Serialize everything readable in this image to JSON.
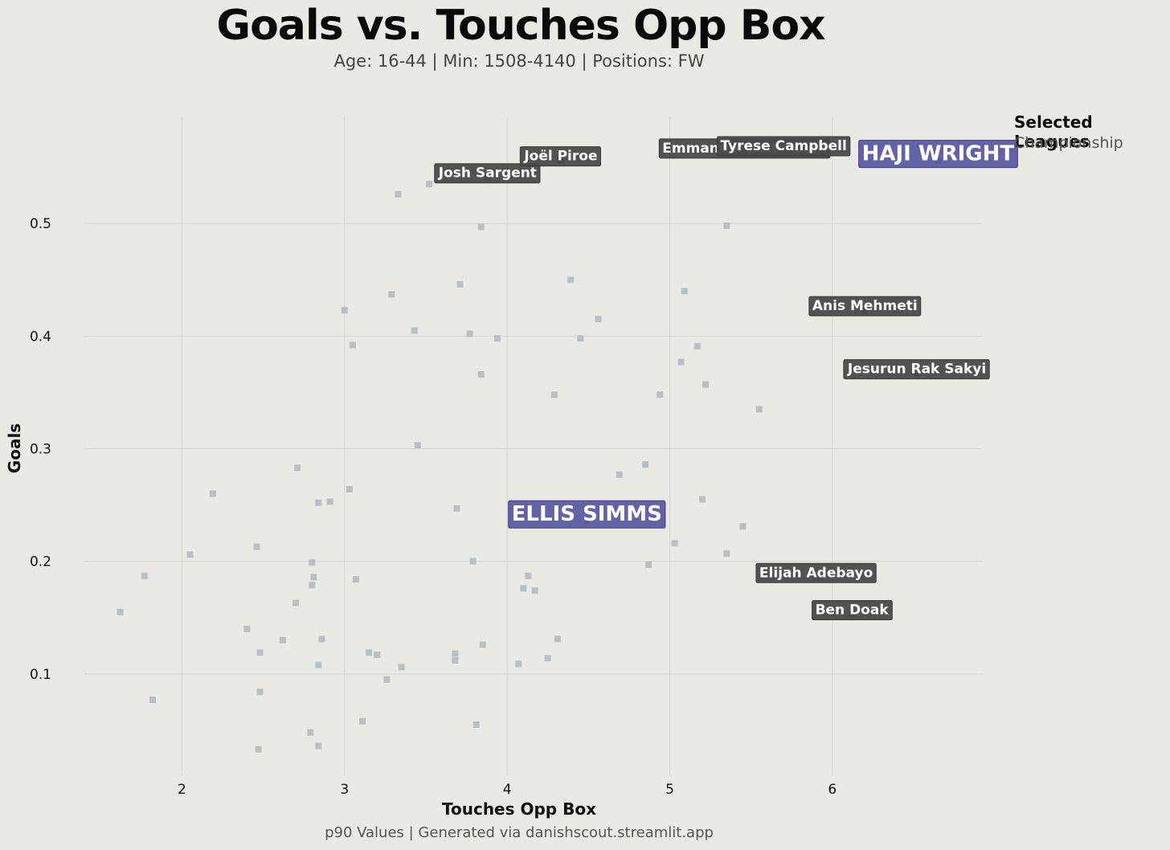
{
  "header": {
    "title": "Goals vs. Touches Opp Box",
    "subtitle": "Age: 16-44 | Min: 1508-4140 | Positions: FW"
  },
  "legend": {
    "title": "Selected Leagues",
    "items": [
      "Championship"
    ]
  },
  "footer": {
    "text": "p90 Values | Generated via danishscout.streamlit.app"
  },
  "colors": {
    "background": "#eaeae4",
    "point": "#b6c1c7",
    "highlight": "#5b5ba3",
    "label_box": "#4a4a4a",
    "grid": "#d4d4cf"
  },
  "chart_data": {
    "type": "scatter",
    "title": "Goals vs. Touches Opp Box",
    "xlabel": "Touches Opp Box",
    "ylabel": "Goals",
    "xlim": [
      1.4,
      6.92
    ],
    "ylim": [
      0.01,
      0.595
    ],
    "xticks": [
      2,
      3,
      4,
      5,
      6
    ],
    "yticks": [
      0.1,
      0.2,
      0.3,
      0.4,
      0.5
    ],
    "grid": true,
    "legend_position": "right",
    "points": [
      {
        "x": 1.62,
        "y": 0.155
      },
      {
        "x": 1.77,
        "y": 0.187
      },
      {
        "x": 1.82,
        "y": 0.077
      },
      {
        "x": 2.05,
        "y": 0.206
      },
      {
        "x": 2.19,
        "y": 0.26
      },
      {
        "x": 2.4,
        "y": 0.14
      },
      {
        "x": 2.46,
        "y": 0.213
      },
      {
        "x": 2.47,
        "y": 0.033
      },
      {
        "x": 2.48,
        "y": 0.119
      },
      {
        "x": 2.48,
        "y": 0.084
      },
      {
        "x": 2.62,
        "y": 0.13
      },
      {
        "x": 2.7,
        "y": 0.163
      },
      {
        "x": 2.71,
        "y": 0.283
      },
      {
        "x": 2.79,
        "y": 0.048
      },
      {
        "x": 2.8,
        "y": 0.199
      },
      {
        "x": 2.8,
        "y": 0.179
      },
      {
        "x": 2.81,
        "y": 0.186
      },
      {
        "x": 2.84,
        "y": 0.252
      },
      {
        "x": 2.84,
        "y": 0.108
      },
      {
        "x": 2.84,
        "y": 0.036
      },
      {
        "x": 2.86,
        "y": 0.131
      },
      {
        "x": 2.91,
        "y": 0.253
      },
      {
        "x": 3.0,
        "y": 0.423
      },
      {
        "x": 3.03,
        "y": 0.264
      },
      {
        "x": 3.05,
        "y": 0.392
      },
      {
        "x": 3.07,
        "y": 0.184
      },
      {
        "x": 3.11,
        "y": 0.058
      },
      {
        "x": 3.15,
        "y": 0.119
      },
      {
        "x": 3.2,
        "y": 0.117
      },
      {
        "x": 3.26,
        "y": 0.095
      },
      {
        "x": 3.29,
        "y": 0.437
      },
      {
        "x": 3.33,
        "y": 0.526
      },
      {
        "x": 3.35,
        "y": 0.106
      },
      {
        "x": 3.43,
        "y": 0.405
      },
      {
        "x": 3.45,
        "y": 0.303
      },
      {
        "x": 3.52,
        "y": 0.535
      },
      {
        "x": 3.68,
        "y": 0.112
      },
      {
        "x": 3.68,
        "y": 0.118
      },
      {
        "x": 3.69,
        "y": 0.247
      },
      {
        "x": 3.71,
        "y": 0.446
      },
      {
        "x": 3.77,
        "y": 0.402
      },
      {
        "x": 3.79,
        "y": 0.2
      },
      {
        "x": 3.81,
        "y": 0.055
      },
      {
        "x": 3.84,
        "y": 0.497
      },
      {
        "x": 3.84,
        "y": 0.366
      },
      {
        "x": 3.85,
        "y": 0.126
      },
      {
        "x": 3.88,
        "y": 0.541
      },
      {
        "x": 3.94,
        "y": 0.398
      },
      {
        "x": 4.07,
        "y": 0.109
      },
      {
        "x": 4.1,
        "y": 0.176
      },
      {
        "x": 4.13,
        "y": 0.187
      },
      {
        "x": 4.17,
        "y": 0.174
      },
      {
        "x": 4.25,
        "y": 0.114
      },
      {
        "x": 4.29,
        "y": 0.348
      },
      {
        "x": 4.31,
        "y": 0.131
      },
      {
        "x": 4.33,
        "y": 0.556
      },
      {
        "x": 4.39,
        "y": 0.45
      },
      {
        "x": 4.45,
        "y": 0.398
      },
      {
        "x": 4.56,
        "y": 0.415
      },
      {
        "x": 4.69,
        "y": 0.277
      },
      {
        "x": 4.85,
        "y": 0.286
      },
      {
        "x": 4.87,
        "y": 0.197
      },
      {
        "x": 4.94,
        "y": 0.348
      },
      {
        "x": 5.03,
        "y": 0.216
      },
      {
        "x": 5.07,
        "y": 0.377
      },
      {
        "x": 5.09,
        "y": 0.44
      },
      {
        "x": 5.17,
        "y": 0.391
      },
      {
        "x": 5.2,
        "y": 0.255
      },
      {
        "x": 5.22,
        "y": 0.357
      },
      {
        "x": 5.35,
        "y": 0.498
      },
      {
        "x": 5.35,
        "y": 0.207
      },
      {
        "x": 5.45,
        "y": 0.231
      },
      {
        "x": 5.46,
        "y": 0.563
      },
      {
        "x": 5.55,
        "y": 0.335
      }
    ],
    "labeled_points": [
      {
        "name": "Josh Sargent",
        "x": 3.88,
        "y": 0.541
      },
      {
        "name": "Joël Piroe",
        "x": 4.33,
        "y": 0.556
      },
      {
        "name": "Emmanuel Latte Lath",
        "x": 5.46,
        "y": 0.563
      },
      {
        "name": "Tyrese Campbell",
        "x": 5.7,
        "y": 0.565
      },
      {
        "name": "Anis Mehmeti",
        "x": 6.2,
        "y": 0.423
      },
      {
        "name": "Jesurun Rak Sakyi",
        "x": 6.52,
        "y": 0.367
      },
      {
        "name": "Elijah Adebayo",
        "x": 5.9,
        "y": 0.186
      },
      {
        "name": "Ben Doak",
        "x": 6.12,
        "y": 0.153
      }
    ],
    "highlighted_points": [
      {
        "name": "HAJI WRIGHT",
        "x": 6.65,
        "y": 0.556
      },
      {
        "name": "ELLIS SIMMS",
        "x": 4.49,
        "y": 0.236
      }
    ]
  }
}
